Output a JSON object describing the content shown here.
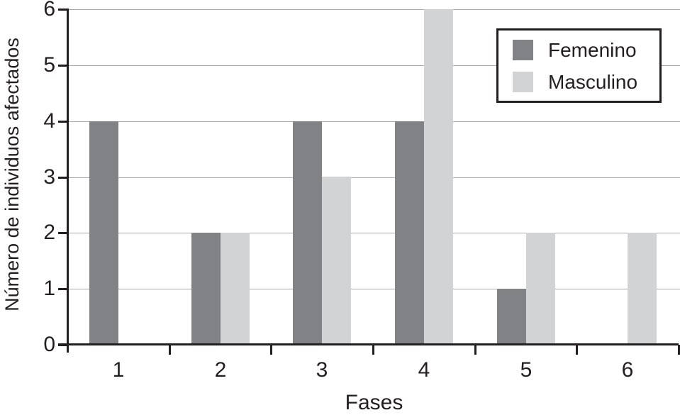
{
  "chart_data": {
    "type": "bar",
    "categories": [
      "1",
      "2",
      "3",
      "4",
      "5",
      "6"
    ],
    "series": [
      {
        "name": "Femenino",
        "color": "#808285",
        "values": [
          4,
          2,
          4,
          4,
          1,
          0
        ]
      },
      {
        "name": "Masculino",
        "color": "#d1d3d4",
        "values": [
          0,
          2,
          3,
          6,
          2,
          2
        ]
      }
    ],
    "title": "",
    "xlabel": "Fases",
    "ylabel": "Número de individuos afectados",
    "ylim": [
      0,
      6
    ],
    "yticks": [
      0,
      1,
      2,
      3,
      4,
      5,
      6
    ],
    "grid": "horizontal",
    "gridline_color": "#a7a9ac",
    "axis_color": "#231f20",
    "legend_position": "top-right",
    "legend_border": true
  }
}
